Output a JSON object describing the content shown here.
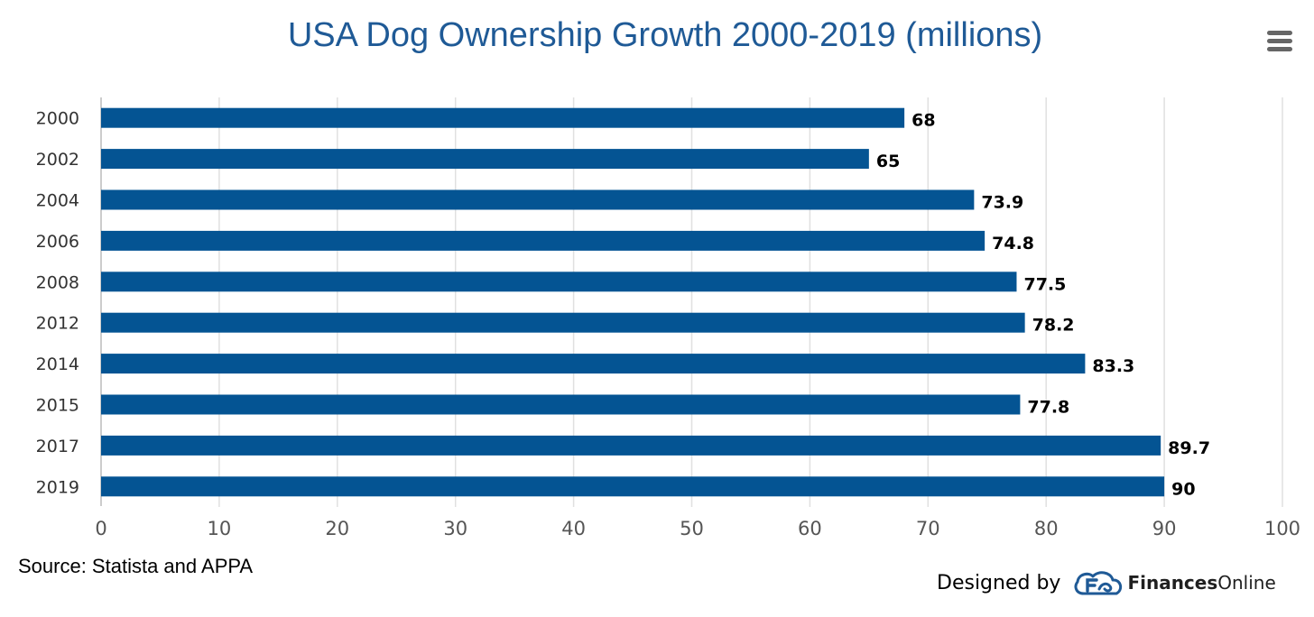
{
  "chart_data": {
    "type": "bar",
    "orientation": "horizontal",
    "title": "USA Dog Ownership Growth 2000-2019 (millions)",
    "categories": [
      "2000",
      "2002",
      "2004",
      "2006",
      "2008",
      "2012",
      "2014",
      "2015",
      "2017",
      "2019"
    ],
    "values": [
      68,
      65,
      73.9,
      74.8,
      77.5,
      78.2,
      83.3,
      77.8,
      89.7,
      90
    ],
    "data_labels": [
      "68",
      "65",
      "73.9",
      "74.8",
      "77.5",
      "78.2",
      "83.3",
      "77.8",
      "89.7",
      "90"
    ],
    "xlim": [
      0,
      100
    ],
    "x_ticks": [
      0,
      10,
      20,
      30,
      40,
      50,
      60,
      70,
      80,
      90,
      100
    ],
    "x_tick_labels": [
      "0",
      "10",
      "20",
      "30",
      "40",
      "50",
      "60",
      "70",
      "80",
      "90",
      "100"
    ],
    "grid": true,
    "legend": "none",
    "bar_color": "#045493"
  },
  "source_text": "Source: Statista and APPA",
  "credit": {
    "prefix": "Designed by",
    "brand_bold": "Finances",
    "brand_regular": "Online",
    "logo_icon": "financesonline-logo-icon",
    "logo_color": "#1f5a96"
  },
  "menu_icon": "hamburger-menu-icon"
}
